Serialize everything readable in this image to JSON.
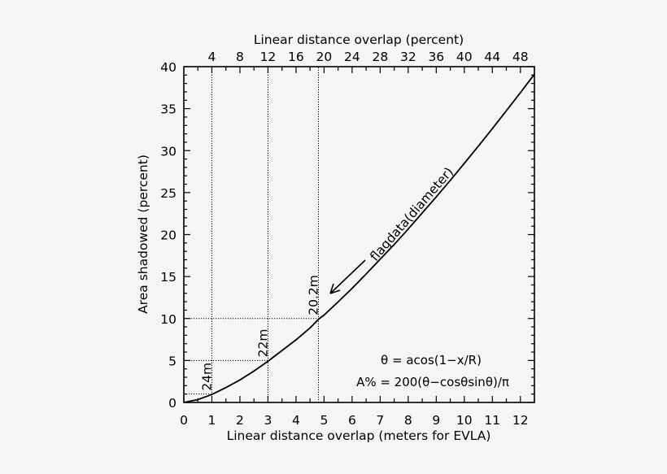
{
  "chart_data": {
    "type": "line",
    "title": "",
    "xlabel": "Linear distance overlap (meters for EVLA)",
    "x2label": "Linear distance overlap (percent)",
    "ylabel": "Area shadowed (percent)",
    "xlim": [
      0,
      12.5
    ],
    "ylim": [
      0,
      40
    ],
    "grid": false,
    "legend": null,
    "x_ticks": [
      0,
      1,
      2,
      3,
      4,
      5,
      6,
      7,
      8,
      9,
      10,
      11,
      12
    ],
    "x_minor_step": 0.5,
    "x2_ticks": [
      4,
      8,
      12,
      16,
      20,
      24,
      28,
      32,
      36,
      40,
      44,
      48
    ],
    "x2_minor_step": 2,
    "y_ticks": [
      0,
      5,
      10,
      15,
      20,
      25,
      30,
      35,
      40
    ],
    "y_minor_step": 1,
    "series": [
      {
        "name": "A% = 200(θ−cosθsinθ)/π",
        "x": [
          0,
          0.5,
          1,
          1.5,
          2,
          2.5,
          3,
          3.5,
          4,
          4.5,
          4.8,
          5,
          5.5,
          6,
          6.5,
          7,
          7.5,
          8,
          8.5,
          9,
          9.5,
          10,
          10.5,
          11,
          11.5,
          12,
          12.5
        ],
        "y": [
          0,
          0.34,
          0.95,
          1.77,
          2.68,
          3.74,
          4.9,
          6.19,
          7.46,
          8.88,
          9.91,
          10.41,
          11.97,
          13.6,
          15.3,
          17.07,
          18.81,
          20.66,
          22.58,
          24.48,
          26.46,
          28.48,
          30.53,
          32.62,
          34.75,
          36.91,
          39.1
        ]
      }
    ],
    "reference_lines": [
      {
        "x": 1,
        "y": 1,
        "label": "24m"
      },
      {
        "x": 3,
        "y": 5,
        "label": "22m"
      },
      {
        "x": 4.8,
        "y": 10,
        "label": "20.2m"
      }
    ],
    "annotations": [
      {
        "text": "flagdata(diameter)",
        "type": "arrow-label"
      },
      {
        "text": "θ = acos(1−x/R)",
        "type": "formula"
      },
      {
        "text": "A% = 200(θ−cosθsinθ)/π",
        "type": "formula"
      }
    ]
  },
  "labels": {
    "xlabel": "Linear distance overlap (meters for EVLA)",
    "x2label": "Linear distance overlap (percent)",
    "ylabel": "Area shadowed (percent)",
    "arrow_label": "flagdata(diameter)",
    "formula_1": "θ = acos(1−x/R)",
    "formula_2": "A% = 200(θ−cosθsinθ)/π"
  }
}
